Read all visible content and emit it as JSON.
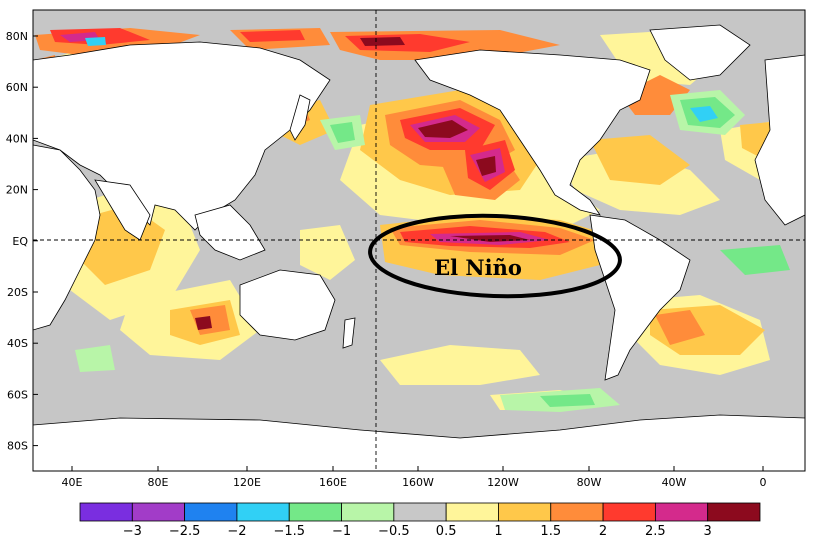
{
  "map": {
    "lat_labels": [
      "80N",
      "60N",
      "40N",
      "20N",
      "EQ",
      "20S",
      "40S",
      "60S",
      "80S"
    ],
    "lon_labels": [
      "40E",
      "80E",
      "120E",
      "160E",
      "160W",
      "120W",
      "80W",
      "40W",
      "0"
    ],
    "annotation": "El Niño",
    "reference_lines": [
      "EQ",
      "180"
    ]
  },
  "colorbar": {
    "labels": [
      "−3",
      "−2.5",
      "−2",
      "−1.5",
      "−1",
      "−0.5",
      "0.5",
      "1",
      "1.5",
      "2",
      "2.5",
      "3"
    ],
    "colors": [
      "#7a2ee0",
      "#a23cc8",
      "#1f82f0",
      "#31d0f5",
      "#74e888",
      "#b8f5a8",
      "#c8c8c8",
      "#fff59a",
      "#ffc84a",
      "#ff8c3a",
      "#ff3a2e",
      "#d42a8c",
      "#8c0a1e"
    ]
  }
}
